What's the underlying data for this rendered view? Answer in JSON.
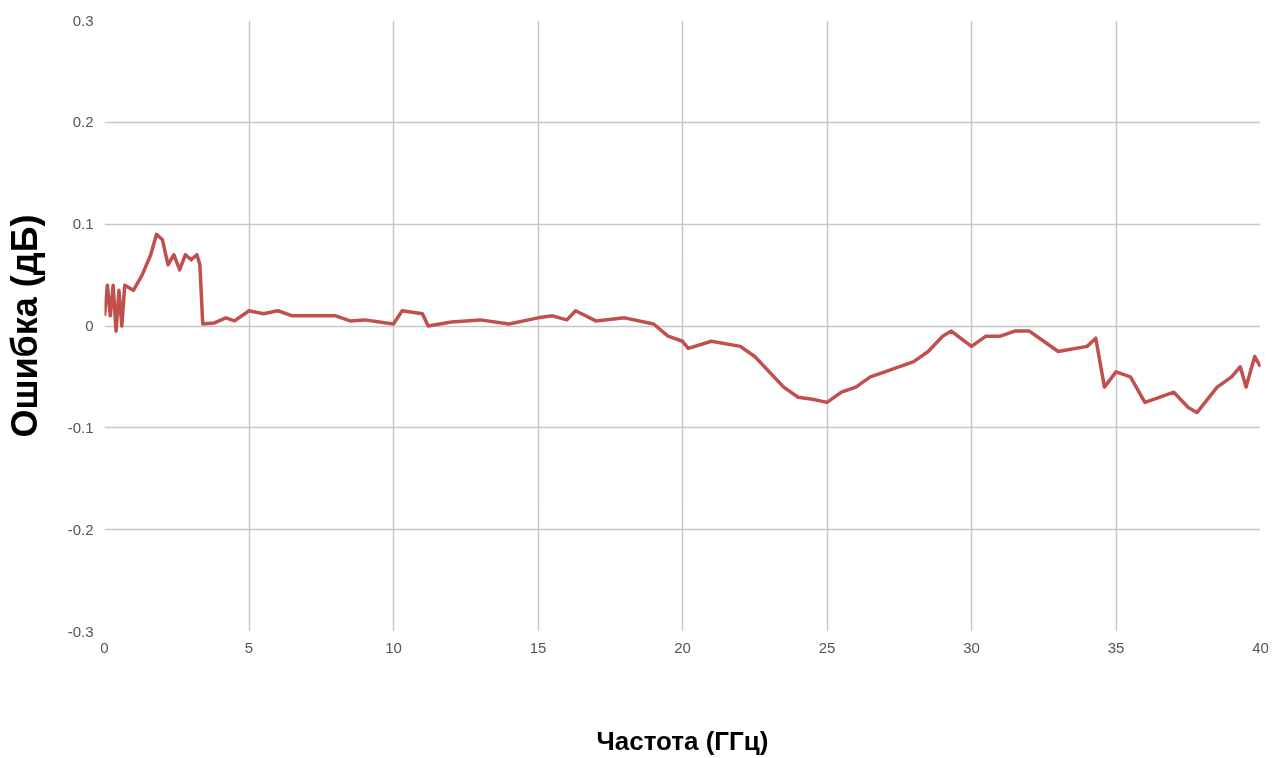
{
  "chart_data": {
    "type": "line",
    "xlabel": "Частота (ГГц)",
    "ylabel": "Ошибка (дБ)",
    "xlim": [
      0,
      40
    ],
    "ylim": [
      -0.3,
      0.3
    ],
    "xticks": [
      0,
      5,
      10,
      15,
      20,
      25,
      30,
      35,
      40
    ],
    "yticks": [
      -0.3,
      -0.2,
      -0.1,
      0,
      0.1,
      0.2,
      0.3
    ],
    "grid": true,
    "series": [
      {
        "color": "#c0504d",
        "x": [
          0,
          0.1,
          0.2,
          0.3,
          0.4,
          0.5,
          0.6,
          0.7,
          1.0,
          1.3,
          1.6,
          1.8,
          2.0,
          2.2,
          2.4,
          2.6,
          2.8,
          3.0,
          3.2,
          3.3,
          3.4,
          3.8,
          4.2,
          4.5,
          5.0,
          5.5,
          6,
          6.5,
          7,
          8,
          8.5,
          9,
          10,
          10.3,
          11,
          11.2,
          12,
          13,
          14,
          15,
          15.5,
          16,
          16.3,
          17,
          18,
          19,
          19.5,
          20,
          20.2,
          21,
          22,
          22.5,
          23,
          23.5,
          24,
          24.5,
          25,
          25.5,
          26,
          26.5,
          27,
          28,
          28.5,
          29,
          29.3,
          30,
          30.5,
          31,
          31.5,
          32,
          32.5,
          33,
          34,
          34.3,
          34.6,
          35,
          35.5,
          36,
          36.5,
          37,
          37.5,
          37.8,
          38.5,
          39,
          39.3,
          39.5,
          39.8,
          40
        ],
        "values": [
          0.01,
          0.04,
          0.01,
          0.04,
          -0.005,
          0.035,
          0.0,
          0.04,
          0.035,
          0.05,
          0.07,
          0.09,
          0.085,
          0.06,
          0.07,
          0.055,
          0.07,
          0.065,
          0.07,
          0.06,
          0.002,
          0.003,
          0.008,
          0.005,
          0.015,
          0.012,
          0.015,
          0.01,
          0.01,
          0.01,
          0.005,
          0.006,
          0.002,
          0.015,
          0.012,
          0.0,
          0.004,
          0.006,
          0.002,
          0.008,
          0.01,
          0.006,
          0.015,
          0.005,
          0.008,
          0.002,
          -0.01,
          -0.015,
          -0.022,
          -0.015,
          -0.02,
          -0.03,
          -0.045,
          -0.06,
          -0.07,
          -0.072,
          -0.075,
          -0.065,
          -0.06,
          -0.05,
          -0.045,
          -0.035,
          -0.025,
          -0.01,
          -0.005,
          -0.02,
          -0.01,
          -0.01,
          -0.005,
          -0.005,
          -0.015,
          -0.025,
          -0.02,
          -0.012,
          -0.06,
          -0.045,
          -0.05,
          -0.075,
          -0.07,
          -0.065,
          -0.08,
          -0.085,
          -0.06,
          -0.05,
          -0.04,
          -0.06,
          -0.03,
          -0.04
        ]
      }
    ]
  }
}
